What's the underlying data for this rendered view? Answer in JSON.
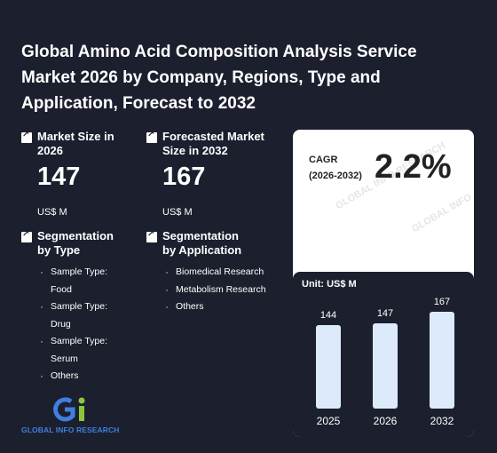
{
  "title": "Global Amino Acid Composition Analysis Service Market 2026 by Company, Regions, Type and Application, Forecast to 2032",
  "market_size": {
    "label": "Market Size in 2026",
    "value": "147",
    "unit": "US$ M"
  },
  "forecast_size": {
    "label": "Forecasted Market Size in 2032",
    "value": "167",
    "unit": "US$ M"
  },
  "cagr": {
    "label_line1": "CAGR",
    "label_line2": "(2026-2032)",
    "value": "2.2%"
  },
  "segmentation_type": {
    "title": "Segmentation by Type",
    "items": [
      "Sample Type: Food",
      "Sample Type: Drug",
      "Sample Type: Serum",
      "Others"
    ]
  },
  "segmentation_application": {
    "title": "Segmentation by Application",
    "items": [
      "Biomedical Research",
      "Metabolism Research",
      "Others"
    ]
  },
  "logo": {
    "text": "GLOBAL INFO RESEARCH"
  },
  "watermark": {
    "text1": "GLOBAL INFO RESEARCH",
    "text2": "GLOBAL INFO"
  },
  "colors": {
    "background": "#1c1f2e",
    "card": "#ffffff",
    "bar": "#ddeafc",
    "logo_blue": "#3f7fe0",
    "logo_green": "#8cc63f"
  },
  "chart_data": {
    "type": "bar",
    "unit_label": "Unit: US$ M",
    "categories": [
      "2025",
      "2026",
      "2032"
    ],
    "values": [
      144,
      147,
      167
    ]
  }
}
